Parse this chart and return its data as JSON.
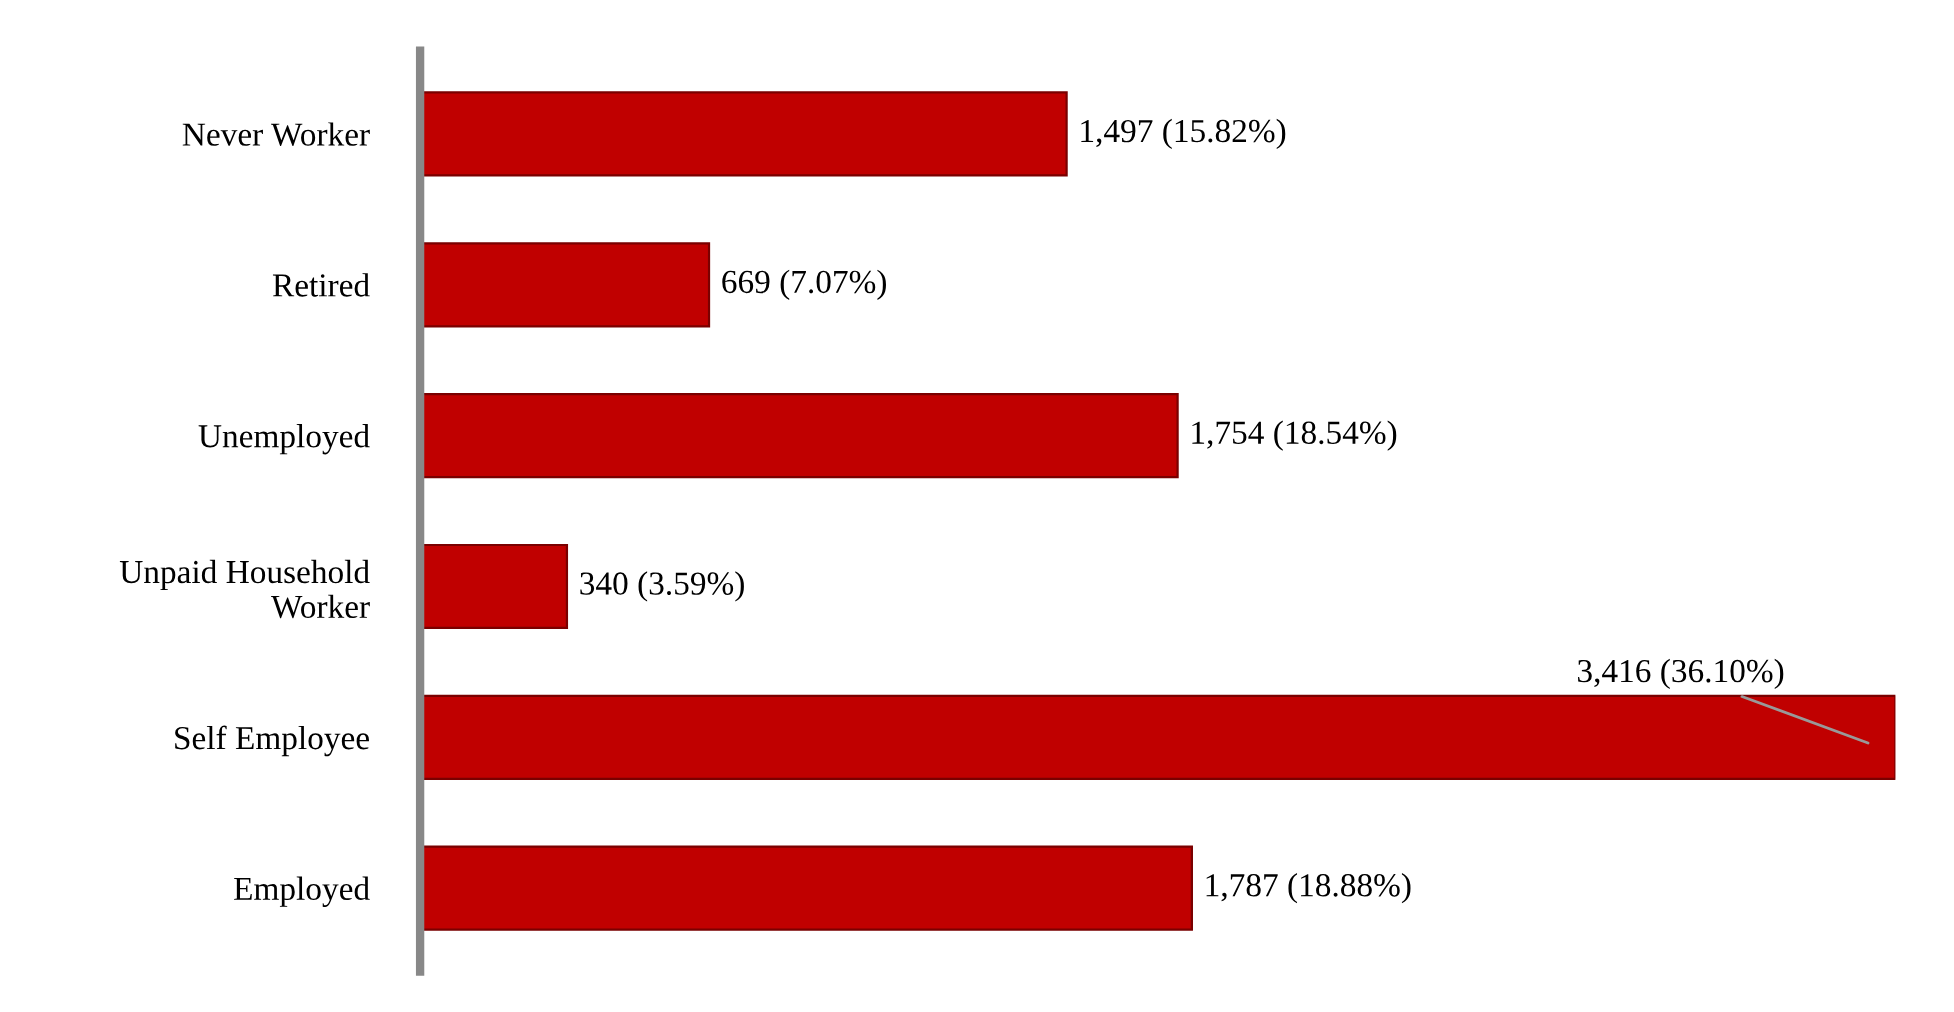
{
  "chart_data": {
    "type": "bar",
    "orientation": "horizontal",
    "categories": [
      "Never Worker",
      "Retired",
      "Unemployed",
      "Unpaid Household\nWorker",
      "Self Employee",
      "Employed"
    ],
    "values": [
      1497,
      669,
      1754,
      340,
      3416,
      1787
    ],
    "value_labels": [
      "1,497 (15.82%)",
      "669 (7.07%)",
      "1,754 (18.54%)",
      "340 (3.59%)",
      "3,416 (36.10%)",
      "1,787 (18.88%)"
    ],
    "color": "#c00000",
    "grid": false,
    "legend": false
  }
}
